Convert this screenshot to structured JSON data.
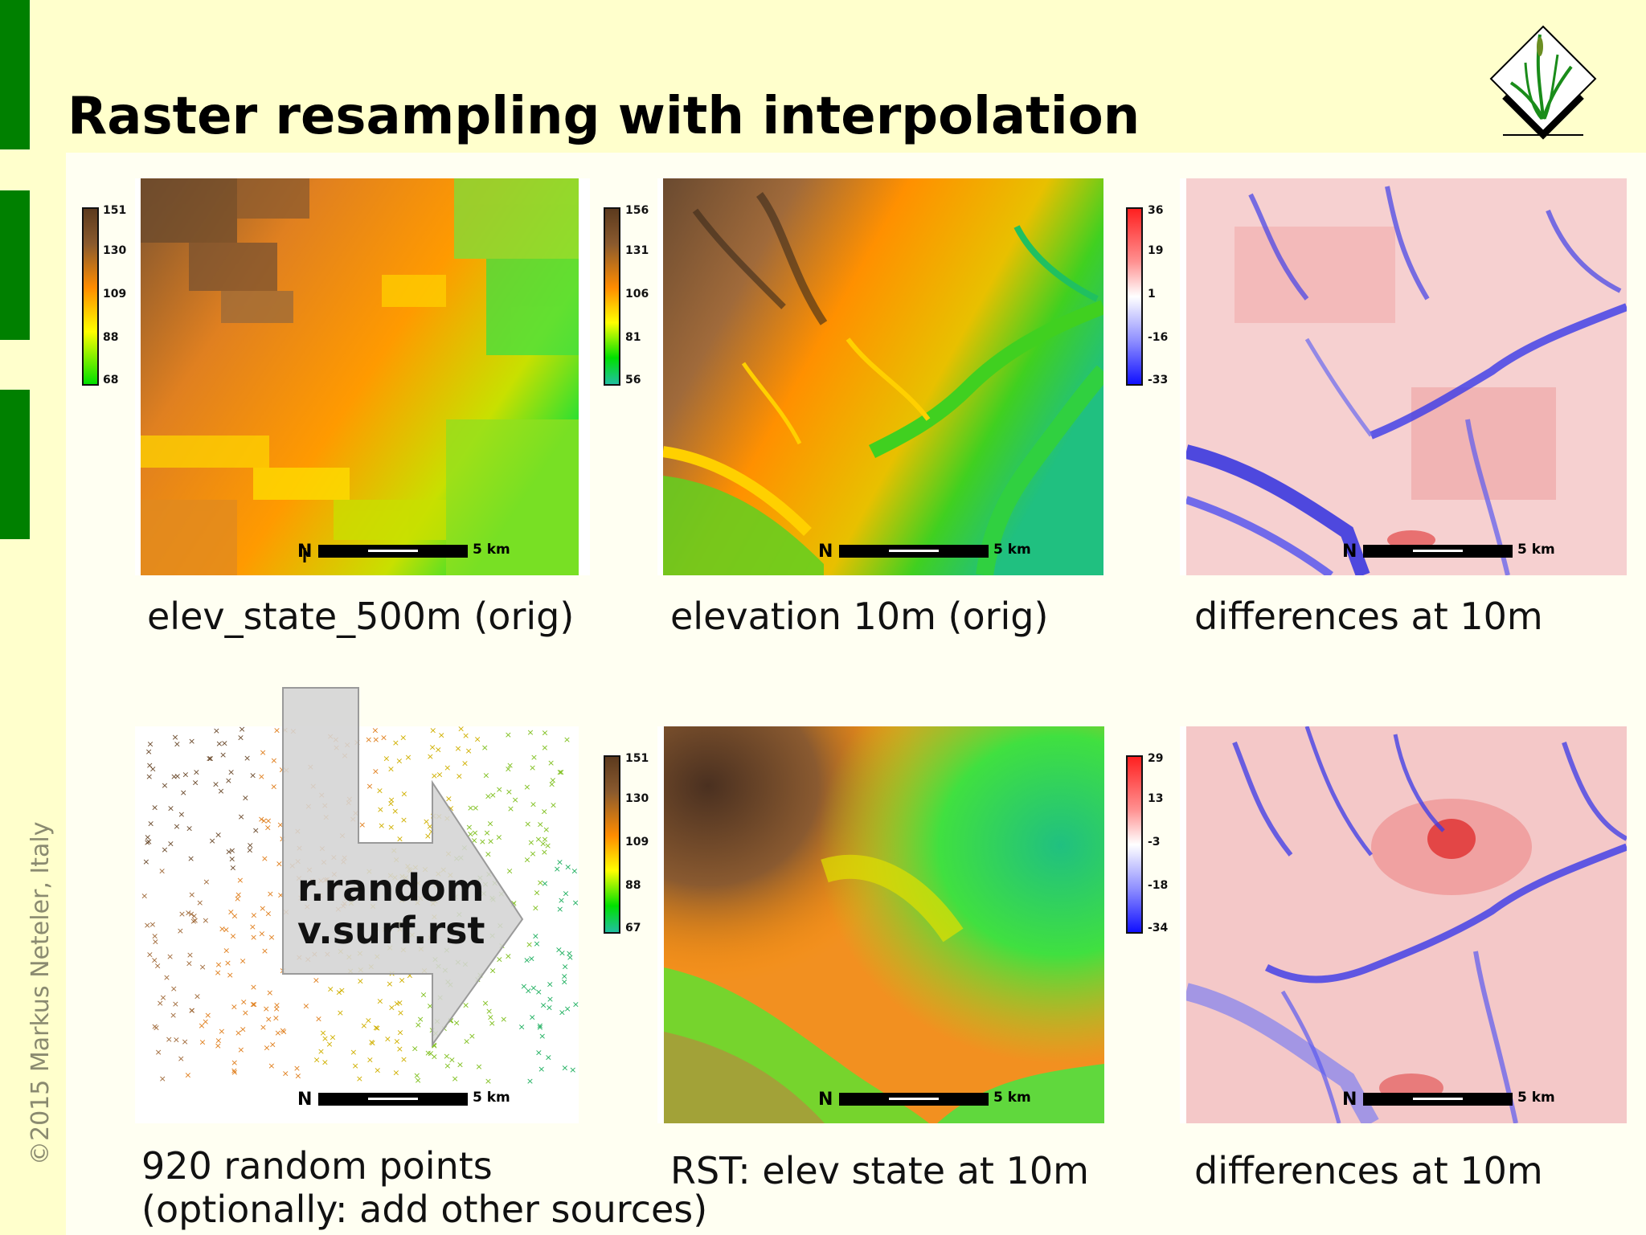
{
  "slide": {
    "title": "Raster resampling with interpolation",
    "copyright": "©2015 Markus Neteler, Italy"
  },
  "panels": {
    "p1": {
      "caption": "elev_state_500m (orig)",
      "legend": [
        "151",
        "130",
        "109",
        "88",
        "68"
      ],
      "scale": "5 km"
    },
    "p2": {
      "caption": "elevation 10m (orig)",
      "legend": [
        "156",
        "131",
        "106",
        "81",
        "56"
      ],
      "scale": "5 km"
    },
    "p3": {
      "caption": "differences at 10m",
      "legend": [
        "36",
        "19",
        "1",
        "-16",
        "-33"
      ],
      "scale": "5 km"
    },
    "p4": {
      "caption_line1": "920 random points",
      "caption_line2": "(optionally: add other sources)",
      "scale": "5 km"
    },
    "p5": {
      "caption": "RST: elev state at 10m",
      "legend": [
        "151",
        "130",
        "109",
        "88",
        "67"
      ],
      "scale": "5 km"
    },
    "p6": {
      "caption": "differences at 10m",
      "legend": [
        "29",
        "13",
        "-3",
        "-18",
        "-34"
      ],
      "scale": "5 km"
    }
  },
  "arrow": {
    "line1": "r.random",
    "line2": "v.surf.rst"
  },
  "colors": {
    "background": "#ffffcc",
    "accent_bar": "#008000"
  },
  "north_symbol": "N"
}
